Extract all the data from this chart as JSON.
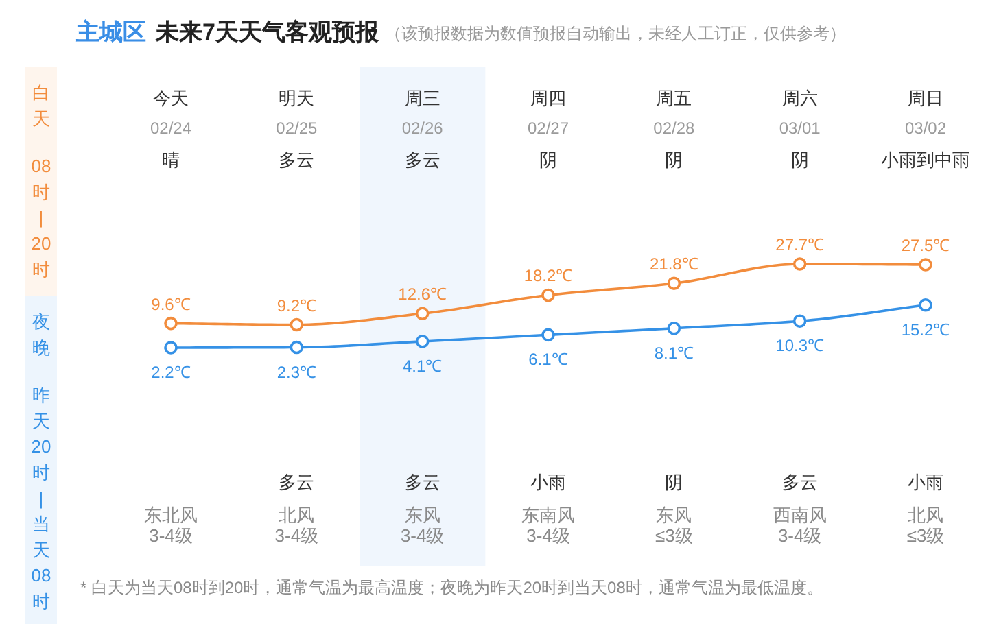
{
  "chart_data": {
    "type": "line",
    "title": "主城区 未来7天天气客观预报",
    "subtitle": "（该预报数据为数值预报自动输出，未经人工订正，仅供参考）",
    "categories": [
      "今天\n02/24\n晴",
      "明天\n02/25\n多云",
      "周三\n02/26\n多云",
      "周四\n02/27\n阴",
      "周五\n02/28\n阴",
      "周六\n03/01\n阴",
      "周日\n03/02\n小雨到中雨"
    ],
    "series": [
      {
        "color": "#f28c3c",
        "values": [
          9.6,
          9.2,
          12.6,
          18.2,
          21.8,
          27.7,
          27.5
        ],
        "value_labels": [
          "9.6℃",
          "9.2℃",
          "12.6℃",
          "18.2℃",
          "21.8℃",
          "27.7℃",
          "27.5℃"
        ]
      },
      {
        "color": "#3591e6",
        "values": [
          2.2,
          2.3,
          4.1,
          6.1,
          8.1,
          10.3,
          15.2
        ],
        "value_labels": [
          "2.2℃",
          "2.3℃",
          "4.1℃",
          "6.1℃",
          "8.1℃",
          "10.3℃",
          "15.2℃"
        ]
      }
    ],
    "marker": "circle",
    "bands": [
      {
        "axis": "x",
        "from": "周三\n02/26\n多云",
        "to": "周三\n02/26\n多云",
        "color": "#f0f6fd"
      }
    ],
    "annotations": [
      "白天",
      "08时|20时",
      "夜晚",
      "昨天20时|当天08时",
      "东北风\n3-4级",
      "多云",
      "北风\n3-4级",
      "多云",
      "东风\n3-4级",
      "小雨",
      "东南风\n3-4级",
      "阴",
      "东风\n≤3级",
      "多云",
      "西南风\n3-4级",
      "小雨",
      "北风\n≤3级",
      "* 白天为当天08时到20时，通常气温为最高温度；夜晚为昨天20时到当天08时，通常气温为最低温度。"
    ]
  }
}
